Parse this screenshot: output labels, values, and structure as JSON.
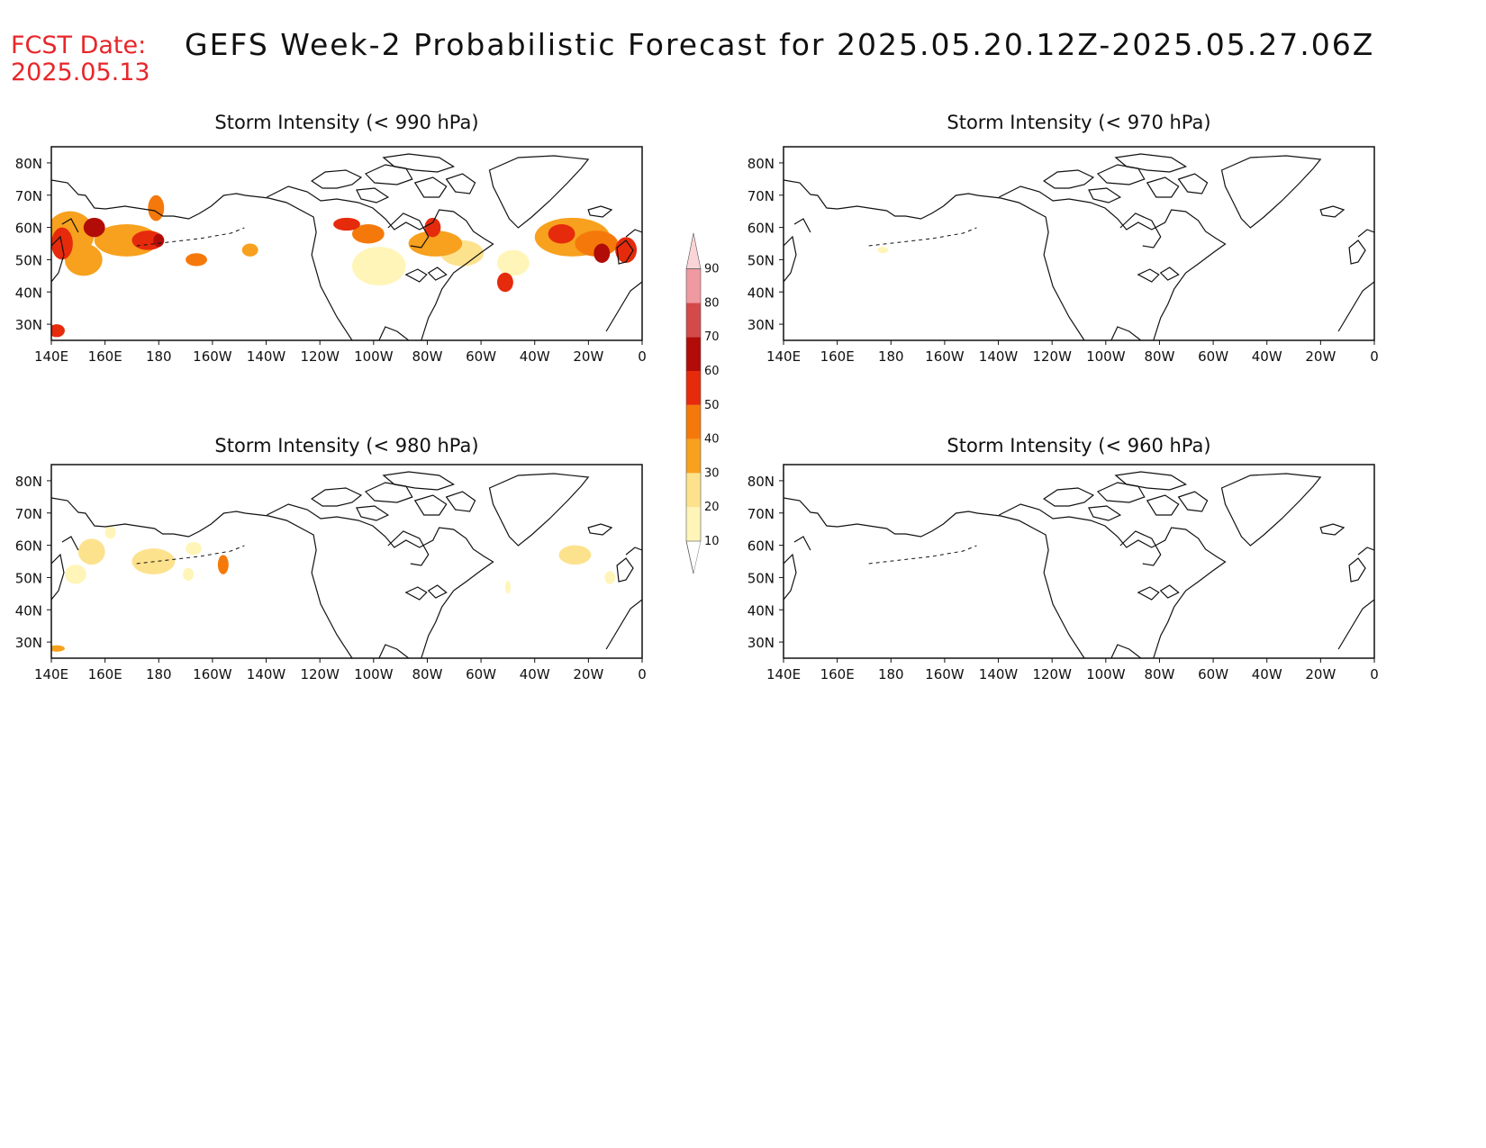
{
  "header": {
    "fcst_label": "FCST Date:",
    "fcst_date": "2025.05.13",
    "title": "GEFS Week-2 Probabilistic Forecast for 2025.05.20.12Z-2025.05.27.06Z"
  },
  "map": {
    "lon_labels": [
      "140E",
      "160E",
      "180",
      "160W",
      "140W",
      "120W",
      "100W",
      "80W",
      "60W",
      "40W",
      "20W",
      "0"
    ],
    "lat_labels": [
      "80N",
      "70N",
      "60N",
      "50N",
      "40N",
      "30N"
    ],
    "lon_range": [
      140,
      360
    ],
    "lat_range": [
      25,
      85
    ]
  },
  "panels": [
    {
      "id": "p990",
      "title": "Storm Intensity (< 990 hPa)",
      "blobs": [
        {
          "lon": 147,
          "lat": 58,
          "rx": 9,
          "ry": 7,
          "level": 30
        },
        {
          "lon": 144,
          "lat": 55,
          "rx": 4,
          "ry": 5,
          "level": 50
        },
        {
          "lon": 156,
          "lat": 60,
          "rx": 4,
          "ry": 3,
          "level": 60
        },
        {
          "lon": 152,
          "lat": 50,
          "rx": 7,
          "ry": 5,
          "level": 30
        },
        {
          "lon": 142,
          "lat": 28,
          "rx": 3,
          "ry": 2,
          "level": 50
        },
        {
          "lon": 168,
          "lat": 56,
          "rx": 12,
          "ry": 5,
          "level": 30
        },
        {
          "lon": 176,
          "lat": 56,
          "rx": 6,
          "ry": 3,
          "level": 50
        },
        {
          "lon": 180,
          "lat": 56,
          "rx": 2,
          "ry": 2,
          "level": 60
        },
        {
          "lon": 179,
          "lat": 66,
          "rx": 3,
          "ry": 4,
          "level": 40
        },
        {
          "lon": 194,
          "lat": 50,
          "rx": 4,
          "ry": 2,
          "level": 40
        },
        {
          "lon": 214,
          "lat": 53,
          "rx": 3,
          "ry": 2,
          "level": 30
        },
        {
          "lon": 250,
          "lat": 61,
          "rx": 5,
          "ry": 2,
          "level": 50
        },
        {
          "lon": 258,
          "lat": 58,
          "rx": 6,
          "ry": 3,
          "level": 40
        },
        {
          "lon": 262,
          "lat": 48,
          "rx": 10,
          "ry": 6,
          "level": 10
        },
        {
          "lon": 283,
          "lat": 55,
          "rx": 10,
          "ry": 4,
          "level": 30
        },
        {
          "lon": 282,
          "lat": 60,
          "rx": 3,
          "ry": 3,
          "level": 50
        },
        {
          "lon": 293,
          "lat": 52,
          "rx": 8,
          "ry": 4,
          "level": 20
        },
        {
          "lon": 309,
          "lat": 43,
          "rx": 3,
          "ry": 3,
          "level": 50
        },
        {
          "lon": 312,
          "lat": 49,
          "rx": 6,
          "ry": 4,
          "level": 10
        },
        {
          "lon": 334,
          "lat": 57,
          "rx": 14,
          "ry": 6,
          "level": 30
        },
        {
          "lon": 330,
          "lat": 58,
          "rx": 5,
          "ry": 3,
          "level": 50
        },
        {
          "lon": 343,
          "lat": 55,
          "rx": 8,
          "ry": 4,
          "level": 40
        },
        {
          "lon": 345,
          "lat": 52,
          "rx": 3,
          "ry": 3,
          "level": 60
        },
        {
          "lon": 354,
          "lat": 53,
          "rx": 4,
          "ry": 4,
          "level": 50
        }
      ]
    },
    {
      "id": "p970",
      "title": "Storm Intensity (< 970 hPa)",
      "blobs": [
        {
          "lon": 177,
          "lat": 53,
          "rx": 2,
          "ry": 1,
          "level": 10
        }
      ]
    },
    {
      "id": "p980",
      "title": "Storm Intensity (< 980 hPa)",
      "blobs": [
        {
          "lon": 155,
          "lat": 58,
          "rx": 5,
          "ry": 4,
          "level": 20
        },
        {
          "lon": 149,
          "lat": 51,
          "rx": 4,
          "ry": 3,
          "level": 10
        },
        {
          "lon": 162,
          "lat": 64,
          "rx": 2,
          "ry": 2,
          "level": 10
        },
        {
          "lon": 178,
          "lat": 55,
          "rx": 8,
          "ry": 4,
          "level": 20
        },
        {
          "lon": 193,
          "lat": 59,
          "rx": 3,
          "ry": 2,
          "level": 10
        },
        {
          "lon": 191,
          "lat": 51,
          "rx": 2,
          "ry": 2,
          "level": 10
        },
        {
          "lon": 204,
          "lat": 54,
          "rx": 2,
          "ry": 3,
          "level": 40
        },
        {
          "lon": 142,
          "lat": 28,
          "rx": 3,
          "ry": 1,
          "level": 30
        },
        {
          "lon": 310,
          "lat": 47,
          "rx": 1,
          "ry": 2,
          "level": 10
        },
        {
          "lon": 335,
          "lat": 57,
          "rx": 6,
          "ry": 3,
          "level": 20
        },
        {
          "lon": 348,
          "lat": 50,
          "rx": 2,
          "ry": 2,
          "level": 10
        }
      ]
    },
    {
      "id": "p960",
      "title": "Storm Intensity (< 960 hPa)",
      "blobs": []
    }
  ],
  "colorbar": {
    "levels": [
      10,
      20,
      30,
      40,
      50,
      60,
      70,
      80,
      90
    ],
    "colors": {
      "10": "#fff5b8",
      "20": "#fde28e",
      "30": "#f7a11e",
      "40": "#f5790a",
      "50": "#e62a0c",
      "60": "#b10c08",
      "70": "#d44a4a",
      "80": "#ef9aa0",
      "90": "#fbd4d8"
    }
  }
}
